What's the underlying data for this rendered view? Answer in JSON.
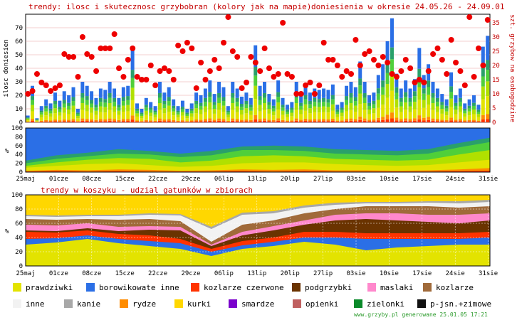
{
  "title_top": "trendy: ilosc i skutecznosc grzybobran (kolory jak na mapie)",
  "title_top_right": "doniesienia w okresie 24.05.26 - 24.09.01",
  "title_mid": "trendy w koszyku - udzial gatunków w zbiorach",
  "footer": "www.grzyby.pl generowane 25.01.05 17:21",
  "colors": {
    "prawdziwki": "#e3e300",
    "borowikowate_inne": "#2b6fe6",
    "kozlarze_czerwone": "#ff3300",
    "podgrzybki": "#6a3300",
    "maslaki": "#ff88cc",
    "kozlarze": "#a06a3a",
    "inne": "#f2f2f2",
    "kanie": "#a8a8a8",
    "rydze": "#ff8c00",
    "kurki": "#ffd700",
    "smardze": "#7a00cc",
    "opienki": "#c06060",
    "zielonki": "#0a8a2a",
    "pjsn": "#111111",
    "dots": "#ee0000"
  },
  "chart_data": [
    {
      "type": "bar",
      "title": "trendy: ilosc i skutecznosc grzybobran (kolory jak na mapie)",
      "subtitle": "doniesienia w okresie 24.05.26 - 24.09.01",
      "ylabel": "ilosc doniesien",
      "ylabel_right": "szt. grzybow na osobogodzine",
      "ylim": [
        0,
        80
      ],
      "ylim_right": [
        0,
        38
      ],
      "yticks": [
        0,
        10,
        20,
        30,
        40,
        50,
        60,
        70
      ],
      "yticks_right": [
        0,
        5,
        10,
        15,
        20,
        25,
        30,
        35
      ],
      "xticks": [
        "25maj",
        "01cze",
        "08cze",
        "15cze",
        "22cze",
        "29cze",
        "06lip",
        "13lip",
        "20lip",
        "27lip",
        "03sie",
        "10sie",
        "17sie",
        "24sie",
        "31sie"
      ],
      "bar_totals": [
        5,
        27,
        3,
        12,
        17,
        14,
        22,
        16,
        23,
        20,
        26,
        10,
        30,
        27,
        23,
        18,
        25,
        24,
        30,
        25,
        18,
        26,
        27,
        54,
        14,
        10,
        18,
        15,
        12,
        30,
        22,
        26,
        17,
        12,
        16,
        10,
        14,
        22,
        20,
        25,
        31,
        21,
        30,
        26,
        12,
        30,
        25,
        19,
        22,
        18,
        57,
        27,
        30,
        21,
        17,
        31,
        18,
        13,
        15,
        30,
        20,
        28,
        22,
        25,
        24,
        25,
        24,
        28,
        13,
        15,
        27,
        30,
        26,
        45,
        30,
        20,
        22,
        35,
        43,
        60,
        77,
        36,
        25,
        31,
        25,
        32,
        55,
        35,
        43,
        30,
        25,
        21,
        17,
        37,
        20,
        25,
        14,
        17,
        20,
        13,
        56,
        64
      ],
      "skutecznosc": [
        10,
        11,
        17,
        14,
        13,
        11,
        12,
        13,
        24,
        23,
        23,
        16,
        30,
        24,
        23,
        18,
        26,
        26,
        26,
        31,
        19,
        16,
        22,
        26,
        16,
        15,
        15,
        20,
        13,
        18,
        19,
        18,
        15,
        27,
        25,
        28,
        26,
        12,
        21,
        15,
        18,
        22,
        19,
        28,
        37,
        25,
        23,
        12,
        14,
        23,
        21,
        18,
        26,
        19,
        16,
        17,
        35,
        17,
        16,
        10,
        10,
        13,
        14,
        10,
        13,
        28,
        22,
        22,
        20,
        16,
        18,
        17,
        29,
        20,
        24,
        25,
        22,
        20,
        23,
        21,
        17,
        16,
        18,
        22,
        19,
        14,
        15,
        14,
        18,
        24,
        26,
        22,
        17,
        29,
        21,
        18,
        13,
        37,
        16,
        26,
        20,
        36
      ]
    },
    {
      "type": "area",
      "title": "",
      "ylabel": "%",
      "ylim": [
        0,
        100
      ],
      "yticks": [
        0,
        20,
        40,
        60,
        80,
        100
      ],
      "series_colors": [
        "#ff3300",
        "#ff8c00",
        "#e3e300",
        "#b0e000",
        "#4fcf3a",
        "#2aa06a",
        "#2b6fe6"
      ],
      "bands_top": [
        [
          1,
          3,
          10,
          14,
          20,
          26
        ],
        [
          2,
          5,
          14,
          22,
          30,
          38
        ],
        [
          1,
          4,
          18,
          28,
          36,
          44
        ],
        [
          2,
          6,
          20,
          32,
          42,
          52
        ],
        [
          1,
          5,
          16,
          30,
          40,
          48
        ],
        [
          1,
          3,
          12,
          22,
          34,
          42
        ],
        [
          1,
          4,
          14,
          26,
          38,
          48
        ],
        [
          2,
          6,
          20,
          36,
          50,
          58
        ],
        [
          1,
          5,
          22,
          38,
          50,
          60
        ],
        [
          2,
          6,
          22,
          36,
          48,
          58
        ],
        [
          1,
          4,
          18,
          30,
          42,
          52
        ],
        [
          1,
          4,
          16,
          28,
          40,
          50
        ],
        [
          1,
          3,
          14,
          26,
          38,
          48
        ],
        [
          1,
          4,
          16,
          28,
          42,
          52
        ],
        [
          2,
          6,
          22,
          40,
          56,
          66
        ],
        [
          3,
          9,
          28,
          50,
          68,
          78
        ]
      ]
    },
    {
      "type": "area",
      "title": "trendy w koszyku - udzial gatunków w zbiorach",
      "ylabel": "%",
      "ylim": [
        0,
        100
      ],
      "yticks": [
        0,
        20,
        40,
        60,
        80,
        100
      ],
      "legend": [
        "prawdziwki",
        "borowikowate inne",
        "kozlarze czerwone",
        "podgrzybki",
        "maslaki",
        "kozlarze",
        "inne",
        "kanie",
        "rydze",
        "kurki",
        "smardze",
        "opienki",
        "zielonki",
        "p-jsn.+zimowe"
      ],
      "series_order": [
        "prawdziwki",
        "borowikowate_inne",
        "kozlarze_czerwone",
        "podgrzybki",
        "maslaki",
        "kozlarze",
        "inne",
        "kanie",
        "kurki"
      ],
      "shares": [
        [
          30,
          8,
          10,
          2,
          8,
          8,
          4,
          2,
          28
        ],
        [
          33,
          6,
          8,
          2,
          8,
          8,
          4,
          2,
          29
        ],
        [
          38,
          5,
          7,
          3,
          7,
          6,
          4,
          2,
          28
        ],
        [
          32,
          6,
          7,
          4,
          6,
          10,
          5,
          2,
          28
        ],
        [
          28,
          7,
          8,
          8,
          5,
          10,
          6,
          2,
          26
        ],
        [
          24,
          8,
          6,
          12,
          5,
          8,
          8,
          2,
          27
        ],
        [
          14,
          6,
          4,
          4,
          2,
          4,
          18,
          3,
          45
        ],
        [
          24,
          5,
          6,
          8,
          5,
          10,
          14,
          3,
          25
        ],
        [
          28,
          6,
          6,
          10,
          6,
          8,
          10,
          3,
          23
        ],
        [
          34,
          6,
          8,
          10,
          6,
          10,
          8,
          3,
          15
        ],
        [
          30,
          10,
          8,
          16,
          8,
          8,
          6,
          3,
          11
        ],
        [
          22,
          16,
          8,
          20,
          8,
          10,
          4,
          2,
          10
        ],
        [
          26,
          12,
          8,
          18,
          10,
          10,
          4,
          2,
          10
        ],
        [
          28,
          10,
          8,
          16,
          10,
          12,
          5,
          2,
          9
        ],
        [
          30,
          8,
          8,
          14,
          12,
          10,
          6,
          3,
          9
        ],
        [
          30,
          10,
          8,
          16,
          10,
          10,
          6,
          3,
          7
        ]
      ]
    }
  ]
}
